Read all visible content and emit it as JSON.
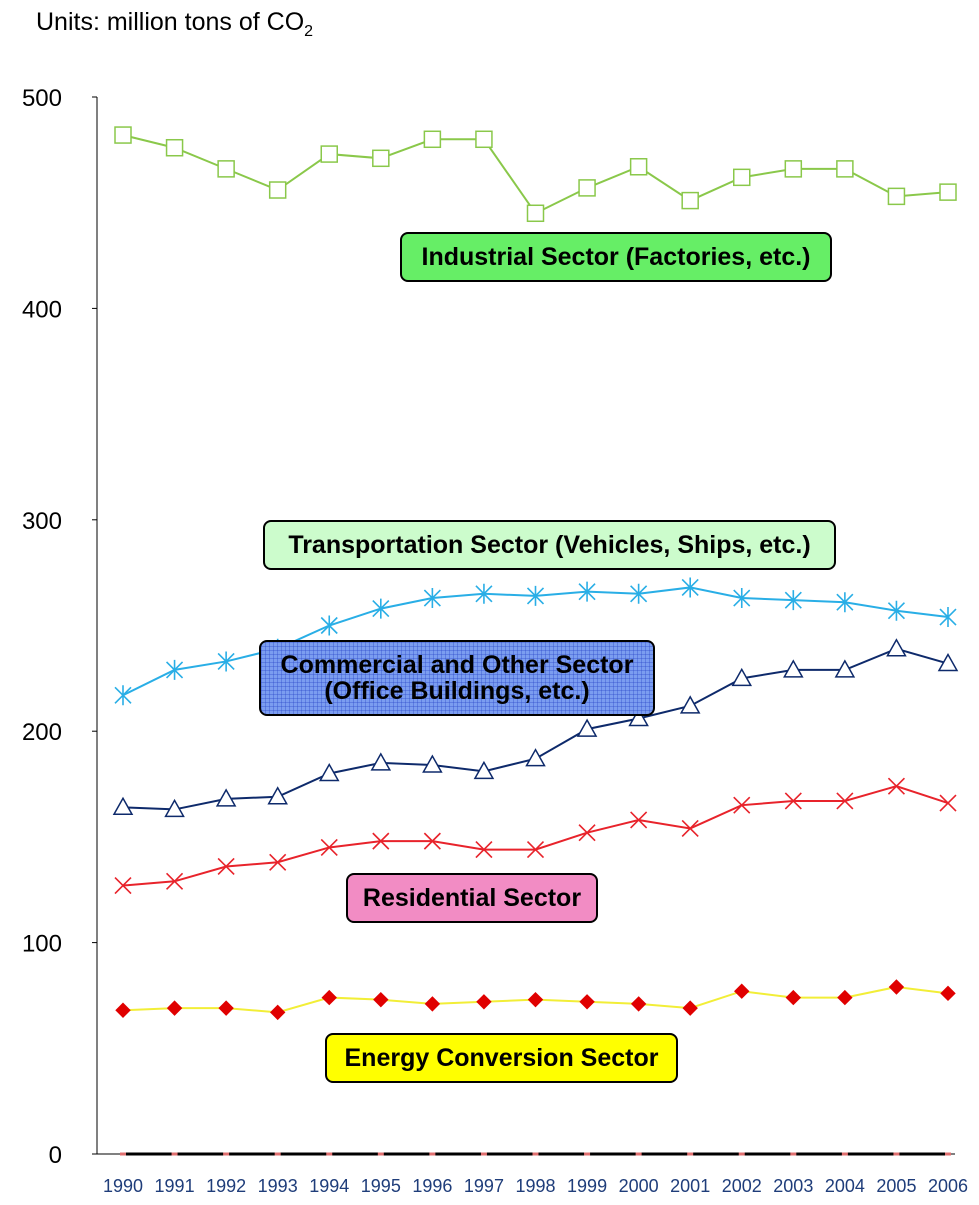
{
  "units_prefix": "Units: million tons of CO",
  "units_sub": "2",
  "labels": {
    "industrial": "Industrial Sector (Factories, etc.)",
    "transportation": "Transportation Sector (Vehicles, Ships, etc.)",
    "commercial_line1": "Commercial and Other Sector",
    "commercial_line2": "(Office Buildings, etc.)",
    "residential": "Residential Sector",
    "energy": "Energy Conversion Sector"
  },
  "chart_data": {
    "type": "line",
    "title": "",
    "xlabel": "",
    "ylabel": "Units: million tons of CO2",
    "ylim": [
      0,
      500
    ],
    "yticks": [
      0,
      100,
      200,
      300,
      400,
      500
    ],
    "x": [
      "1990",
      "1991",
      "1992",
      "1993",
      "1994",
      "1995",
      "1996",
      "1997",
      "1998",
      "1999",
      "2000",
      "2001",
      "2002",
      "2003",
      "2004",
      "2005",
      "2006"
    ],
    "series": [
      {
        "name": "Industrial Sector (Factories, etc.)",
        "color": "#8ac84a",
        "marker": "square",
        "values": [
          482,
          476,
          466,
          456,
          473,
          471,
          480,
          480,
          445,
          457,
          467,
          451,
          462,
          466,
          466,
          453,
          455
        ]
      },
      {
        "name": "Transportation Sector (Vehicles, Ships, etc.)",
        "color": "#29aee6",
        "marker": "asterisk",
        "values": [
          217,
          229,
          233,
          239,
          250,
          258,
          263,
          265,
          264,
          266,
          265,
          268,
          263,
          262,
          261,
          257,
          254
        ]
      },
      {
        "name": "Commercial and Other Sector (Office Buildings, etc.)",
        "color": "#0e2a6b",
        "marker": "triangle",
        "values": [
          164,
          163,
          168,
          169,
          180,
          185,
          184,
          181,
          187,
          201,
          206,
          212,
          225,
          229,
          229,
          239,
          232
        ]
      },
      {
        "name": "Residential Sector",
        "color": "#e8232b",
        "marker": "x",
        "values": [
          127,
          129,
          136,
          138,
          145,
          148,
          148,
          144,
          144,
          152,
          158,
          154,
          165,
          167,
          167,
          174,
          166
        ]
      },
      {
        "name": "Energy Conversion Sector",
        "color": "#f2ee37",
        "marker": "diamond",
        "values": [
          68,
          69,
          69,
          67,
          74,
          73,
          71,
          72,
          73,
          72,
          71,
          69,
          77,
          74,
          74,
          79,
          76
        ]
      },
      {
        "name": "",
        "color": "#000000",
        "marker": "none",
        "values": [
          0,
          0,
          0,
          0,
          0,
          0,
          0,
          0,
          0,
          0,
          0,
          0,
          0,
          0,
          0,
          0,
          0
        ]
      }
    ]
  }
}
